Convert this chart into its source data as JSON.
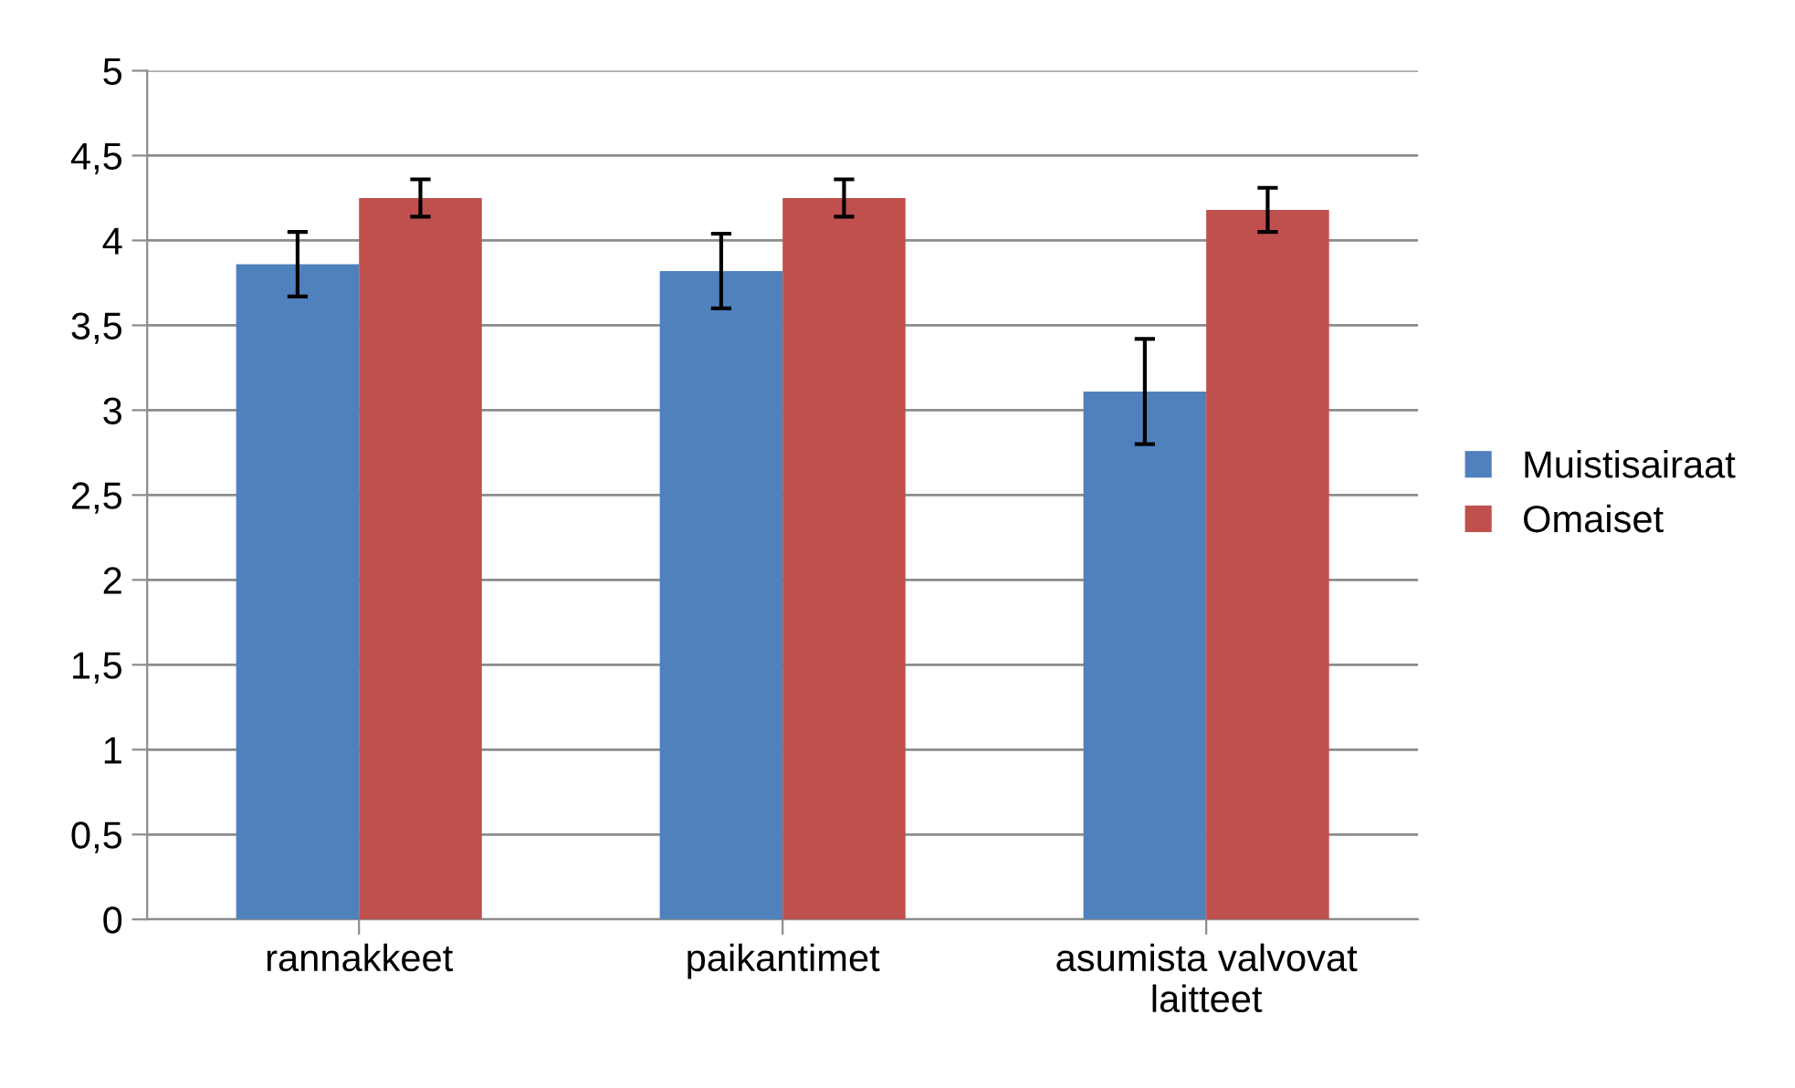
{
  "chart_data": {
    "type": "bar",
    "categories": [
      "rannakkeet",
      "paikantimet",
      "asumista valvovat\nlaitteet"
    ],
    "series": [
      {
        "name": "Muistisairaat",
        "color": "#4f81bd",
        "values": [
          3.86,
          3.82,
          3.11
        ],
        "errors": [
          0.19,
          0.22,
          0.31
        ]
      },
      {
        "name": "Omaiset",
        "color": "#c0504d",
        "values": [
          4.25,
          4.25,
          4.18
        ],
        "errors": [
          0.11,
          0.11,
          0.13
        ]
      }
    ],
    "ylim": [
      0,
      5
    ],
    "yticks": [
      0,
      {
        "value": 0.5,
        "label": "0,5"
      },
      1,
      {
        "value": 1.5,
        "label": "1,5"
      },
      2,
      {
        "value": 2.5,
        "label": "2,5"
      },
      3,
      {
        "value": 3.5,
        "label": "3,5"
      },
      4,
      {
        "value": 4.5,
        "label": "4,5"
      },
      5
    ],
    "grid": "y",
    "legend": "right"
  }
}
